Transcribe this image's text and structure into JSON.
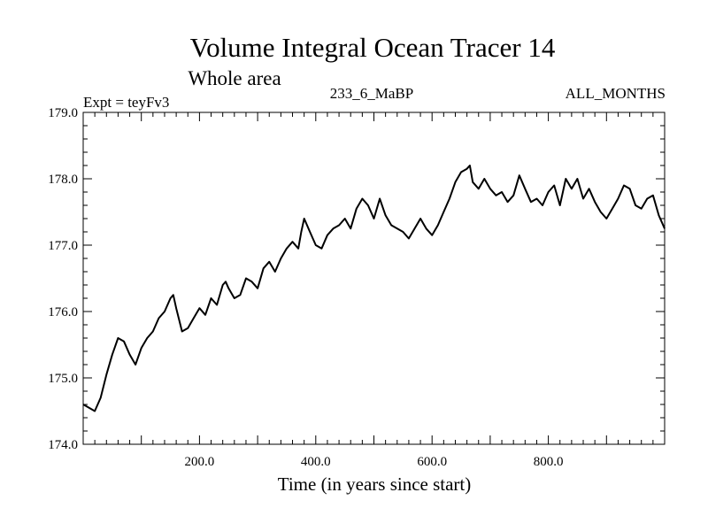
{
  "chart_data": {
    "type": "line",
    "title": "Volume Integral Ocean Tracer 14",
    "subtitle": "Whole area",
    "experiment_label": "Expt = teyFv3",
    "center_label": "233_6_MaBP",
    "right_label": "ALL_MONTHS",
    "xlabel": "Time (in years since start)",
    "ylabel": "",
    "xlim": [
      0,
      1000
    ],
    "ylim": [
      174.0,
      179.0
    ],
    "x_ticks": [
      200,
      400,
      600,
      800
    ],
    "x_tick_labels": [
      "200.0",
      "400.0",
      "600.0",
      "800.0"
    ],
    "y_ticks": [
      174.0,
      175.0,
      176.0,
      177.0,
      178.0,
      179.0
    ],
    "y_tick_labels": [
      "174.0",
      "175.0",
      "176.0",
      "177.0",
      "178.0",
      "179.0"
    ],
    "grid": false,
    "series": [
      {
        "name": "Volume Integral Ocean Tracer 14",
        "color": "#000000",
        "x": [
          0,
          10,
          20,
          30,
          40,
          50,
          60,
          70,
          80,
          90,
          100,
          110,
          120,
          130,
          140,
          150,
          155,
          160,
          170,
          180,
          190,
          200,
          210,
          220,
          230,
          240,
          245,
          250,
          260,
          270,
          280,
          290,
          300,
          310,
          320,
          330,
          340,
          350,
          360,
          370,
          375,
          380,
          390,
          400,
          410,
          420,
          430,
          440,
          450,
          460,
          470,
          480,
          490,
          500,
          510,
          520,
          530,
          540,
          550,
          560,
          570,
          580,
          590,
          600,
          610,
          620,
          630,
          640,
          650,
          660,
          665,
          670,
          680,
          690,
          700,
          710,
          720,
          730,
          740,
          750,
          760,
          770,
          780,
          790,
          800,
          810,
          820,
          830,
          840,
          850,
          860,
          870,
          880,
          890,
          900,
          910,
          920,
          930,
          940,
          950,
          960,
          970,
          980,
          990,
          1000
        ],
        "values": [
          174.6,
          174.55,
          174.5,
          174.7,
          175.05,
          175.35,
          175.6,
          175.55,
          175.35,
          175.2,
          175.45,
          175.6,
          175.7,
          175.9,
          176.0,
          176.2,
          176.25,
          176.05,
          175.7,
          175.75,
          175.9,
          176.05,
          175.95,
          176.2,
          176.1,
          176.4,
          176.45,
          176.35,
          176.2,
          176.25,
          176.5,
          176.45,
          176.35,
          176.65,
          176.75,
          176.6,
          176.8,
          176.95,
          177.05,
          176.95,
          177.2,
          177.4,
          177.2,
          177.0,
          176.95,
          177.15,
          177.25,
          177.3,
          177.4,
          177.25,
          177.55,
          177.7,
          177.6,
          177.4,
          177.7,
          177.45,
          177.3,
          177.25,
          177.2,
          177.1,
          177.25,
          177.4,
          177.25,
          177.15,
          177.3,
          177.5,
          177.7,
          177.95,
          178.1,
          178.15,
          178.2,
          177.95,
          177.85,
          178.0,
          177.85,
          177.75,
          177.8,
          177.65,
          177.75,
          178.05,
          177.85,
          177.65,
          177.7,
          177.6,
          177.8,
          177.9,
          177.6,
          178.0,
          177.85,
          178.0,
          177.7,
          177.85,
          177.65,
          177.5,
          177.4,
          177.55,
          177.7,
          177.9,
          177.85,
          177.6,
          177.55,
          177.7,
          177.75,
          177.45,
          177.25
        ]
      }
    ]
  }
}
